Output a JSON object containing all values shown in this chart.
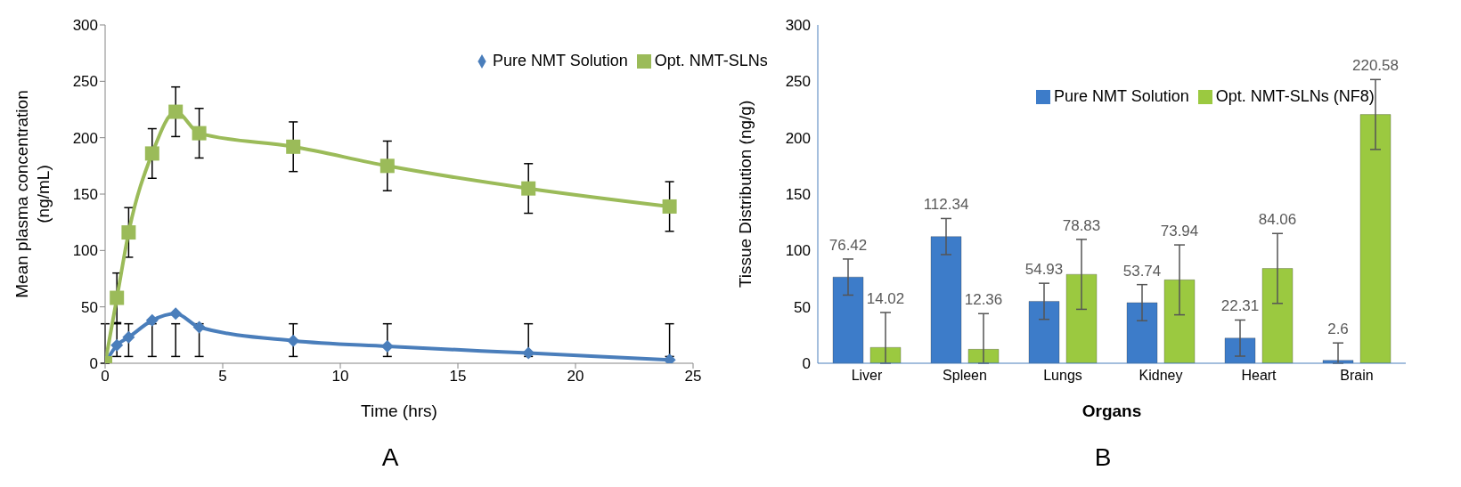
{
  "chart_data": [
    {
      "type": "line",
      "xlabel": "Time (hrs)",
      "ylabel": "Mean plasma concentration (ng/mL)",
      "x": [
        0,
        0.5,
        1,
        2,
        3,
        4,
        8,
        12,
        18,
        24
      ],
      "xlim": [
        0,
        25
      ],
      "xticks": [
        0,
        5,
        10,
        15,
        20,
        25
      ],
      "ylim": [
        0,
        300
      ],
      "yticks": [
        0,
        50,
        100,
        150,
        200,
        250,
        300
      ],
      "grid": false,
      "legend": "top right",
      "annotations": [
        "A"
      ],
      "series": [
        {
          "name": "Pure NMT Solution",
          "color": "#4a7ebb",
          "marker": "diamond",
          "values": [
            0,
            16,
            23,
            38,
            44,
            32,
            20,
            15,
            9,
            3
          ],
          "errors": [
            [
              0,
              35
            ],
            [
              6,
              35
            ],
            [
              6,
              35
            ],
            [
              6,
              35
            ],
            [
              6,
              35
            ],
            [
              6,
              35
            ],
            [
              6,
              35
            ],
            [
              6,
              35
            ],
            [
              6,
              35
            ],
            [
              6,
              35
            ]
          ]
        },
        {
          "name": "Opt. NMT-SLNs",
          "color": "#9bbb59",
          "marker": "square",
          "values": [
            0,
            58,
            116,
            186,
            223,
            204,
            192,
            175,
            155,
            139
          ],
          "errors": [
            null,
            22,
            22,
            22,
            22,
            22,
            22,
            22,
            22,
            22
          ]
        }
      ]
    },
    {
      "type": "bar",
      "xlabel": "Organs",
      "ylabel": "Tissue Distribution (ng/g)",
      "categories": [
        "Liver",
        "Spleen",
        "Lungs",
        "Kidney",
        "Heart",
        "Brain"
      ],
      "ylim": [
        0,
        300
      ],
      "yticks": [
        0,
        50,
        100,
        150,
        200,
        250,
        300
      ],
      "grid": false,
      "legend": "top right",
      "data_labels": true,
      "annotations": [
        "B"
      ],
      "series": [
        {
          "name": "Pure NMT Solution",
          "color": "#3d7cc9",
          "values": [
            76.42,
            112.34,
            54.93,
            53.74,
            22.31,
            2.6
          ],
          "errors": [
            16,
            16,
            16,
            16,
            16,
            [
              0,
              18
            ]
          ]
        },
        {
          "name": "Opt. NMT-SLNs (NF8)",
          "color": "#9bc940",
          "values": [
            14.02,
            12.36,
            78.83,
            73.94,
            84.06,
            220.58
          ],
          "errors": [
            [
              0,
              45
            ],
            [
              0,
              44
            ],
            31,
            31,
            31,
            31
          ]
        }
      ]
    }
  ]
}
